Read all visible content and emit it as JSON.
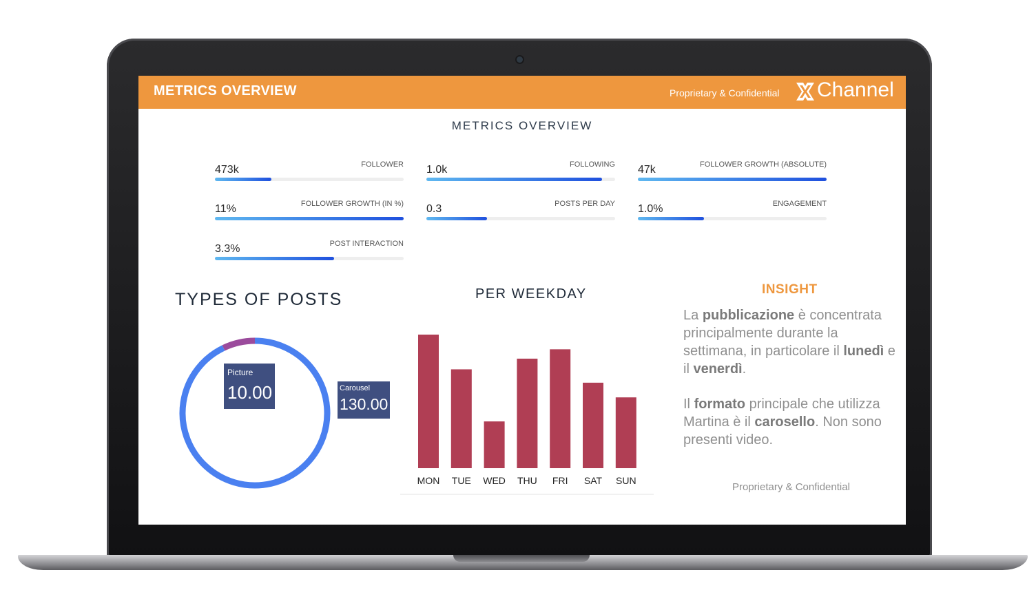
{
  "header": {
    "title": "METRICS OVERVIEW",
    "confidential": "Proprietary & Confidential",
    "brand": "Channel",
    "brand_color": "#ee973e"
  },
  "section_title": "METRICS OVERVIEW",
  "metrics": [
    {
      "value": "473k",
      "label": "FOLLOWER",
      "fill": 0.3
    },
    {
      "value": "1.0k",
      "label": "FOLLOWING",
      "fill": 0.93
    },
    {
      "value": "47k",
      "label": "FOLLOWER GROWTH (ABSOLUTE)",
      "fill": 1.0
    },
    {
      "value": "11%",
      "label": "FOLLOWER GROWTH (IN %)",
      "fill": 1.0
    },
    {
      "value": "0.3",
      "label": "POSTS PER DAY",
      "fill": 0.32
    },
    {
      "value": "1.0%",
      "label": "ENGAGEMENT",
      "fill": 0.35
    },
    {
      "value": "3.3%",
      "label": "POST INTERACTION",
      "fill": 0.63
    }
  ],
  "types_of_posts": {
    "title": "TYPES OF POSTS",
    "picture_label": "Picture",
    "picture_value": "10.00",
    "carousel_label": "Carousel",
    "carousel_value": "130.00"
  },
  "weekday": {
    "title": "PER WEEKDAY"
  },
  "insight": {
    "title": "INSIGHT"
  },
  "footer": {
    "confidential": "Proprietary & Confidential"
  },
  "chart_data": [
    {
      "type": "pie",
      "title": "TYPES OF POSTS",
      "categories": [
        "Picture",
        "Carousel"
      ],
      "values": [
        10,
        130
      ],
      "colors": [
        "#9b4b9c",
        "#4a80f0"
      ]
    },
    {
      "type": "bar",
      "title": "PER WEEKDAY",
      "categories": [
        "MON",
        "TUE",
        "WED",
        "THU",
        "FRI",
        "SAT",
        "SUN"
      ],
      "values": [
        100,
        74,
        35,
        82,
        89,
        64,
        53
      ],
      "ylim": [
        0,
        100
      ],
      "grid": false,
      "bar_color": "#b03e54"
    }
  ]
}
